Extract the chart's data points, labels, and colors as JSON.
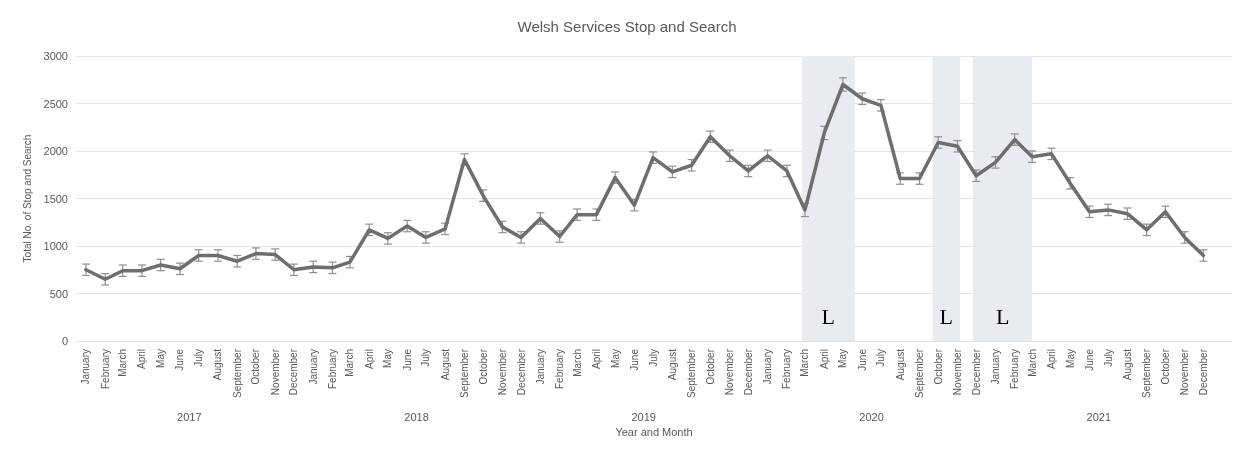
{
  "chart_data": {
    "type": "line",
    "title": "Welsh Services Stop and Search",
    "xlabel": "Year and Month",
    "ylabel": "Total No. of Stop and Search",
    "x": [
      "2017-01",
      "2017-02",
      "2017-03",
      "2017-04",
      "2017-05",
      "2017-06",
      "2017-07",
      "2017-08",
      "2017-09",
      "2017-10",
      "2017-11",
      "2017-12",
      "2018-01",
      "2018-02",
      "2018-03",
      "2018-04",
      "2018-05",
      "2018-06",
      "2018-07",
      "2018-08",
      "2018-09",
      "2018-10",
      "2018-11",
      "2018-12",
      "2019-01",
      "2019-02",
      "2019-03",
      "2019-04",
      "2019-05",
      "2019-06",
      "2019-07",
      "2019-08",
      "2019-09",
      "2019-10",
      "2019-11",
      "2019-12",
      "2020-01",
      "2020-02",
      "2020-03",
      "2020-04",
      "2020-05",
      "2020-06",
      "2020-07",
      "2020-08",
      "2020-09",
      "2020-10",
      "2020-11",
      "2020-12",
      "2021-01",
      "2021-02",
      "2021-03",
      "2021-04",
      "2021-05",
      "2021-06",
      "2021-07",
      "2021-08",
      "2021-09",
      "2021-10",
      "2021-11",
      "2021-12"
    ],
    "series": [
      {
        "color": "#6e6e6e",
        "values": [
          750,
          650,
          740,
          740,
          800,
          760,
          900,
          900,
          840,
          920,
          910,
          750,
          780,
          770,
          830,
          1170,
          1080,
          1210,
          1090,
          1180,
          1910,
          1530,
          1200,
          1090,
          1290,
          1100,
          1330,
          1330,
          1720,
          1430,
          1930,
          1780,
          1850,
          2150,
          1950,
          1790,
          1950,
          1790,
          1380,
          2190,
          2700,
          2550,
          2480,
          1710,
          1710,
          2090,
          2050,
          1740,
          1880,
          2120,
          1940,
          1970,
          1660,
          1360,
          1380,
          1340,
          1170,
          1360,
          1090,
          900
        ],
        "errors": [
          60,
          60,
          60,
          60,
          60,
          60,
          60,
          60,
          60,
          60,
          60,
          60,
          60,
          60,
          60,
          60,
          60,
          60,
          60,
          60,
          60,
          60,
          60,
          60,
          60,
          60,
          60,
          60,
          60,
          60,
          60,
          60,
          60,
          60,
          60,
          60,
          60,
          60,
          70,
          70,
          70,
          60,
          60,
          60,
          60,
          60,
          60,
          60,
          60,
          60,
          60,
          60,
          60,
          60,
          60,
          60,
          60,
          60,
          60,
          60
        ]
      }
    ],
    "xlim": [
      "2016-12-16",
      "2022-01-16"
    ],
    "xticks": [
      {
        "value": "2017-01",
        "label": "January"
      },
      {
        "value": "2017-02",
        "label": "February"
      },
      {
        "value": "2017-03",
        "label": "March"
      },
      {
        "value": "2017-04",
        "label": "April"
      },
      {
        "value": "2017-05",
        "label": "May"
      },
      {
        "value": "2017-06",
        "label": "June"
      },
      {
        "value": "2017-07",
        "label": "July"
      },
      {
        "value": "2017-08",
        "label": "August"
      },
      {
        "value": "2017-09",
        "label": "September"
      },
      {
        "value": "2017-10",
        "label": "October"
      },
      {
        "value": "2017-11",
        "label": "November"
      },
      {
        "value": "2017-12",
        "label": "December"
      },
      {
        "value": "2018-01",
        "label": "January"
      },
      {
        "value": "2018-02",
        "label": "February"
      },
      {
        "value": "2018-03",
        "label": "March"
      },
      {
        "value": "2018-04",
        "label": "April"
      },
      {
        "value": "2018-05",
        "label": "May"
      },
      {
        "value": "2018-06",
        "label": "June"
      },
      {
        "value": "2018-07",
        "label": "July"
      },
      {
        "value": "2018-08",
        "label": "August"
      },
      {
        "value": "2018-09",
        "label": "September"
      },
      {
        "value": "2018-10",
        "label": "October"
      },
      {
        "value": "2018-11",
        "label": "November"
      },
      {
        "value": "2018-12",
        "label": "December"
      },
      {
        "value": "2019-01",
        "label": "January"
      },
      {
        "value": "2019-02",
        "label": "February"
      },
      {
        "value": "2019-03",
        "label": "March"
      },
      {
        "value": "2019-04",
        "label": "April"
      },
      {
        "value": "2019-05",
        "label": "May"
      },
      {
        "value": "2019-06",
        "label": "June"
      },
      {
        "value": "2019-07",
        "label": "July"
      },
      {
        "value": "2019-08",
        "label": "August"
      },
      {
        "value": "2019-09",
        "label": "September"
      },
      {
        "value": "2019-10",
        "label": "October"
      },
      {
        "value": "2019-11",
        "label": "November"
      },
      {
        "value": "2019-12",
        "label": "December"
      },
      {
        "value": "2020-01",
        "label": "January"
      },
      {
        "value": "2020-02",
        "label": "February"
      },
      {
        "value": "2020-03",
        "label": "March"
      },
      {
        "value": "2020-04",
        "label": "April"
      },
      {
        "value": "2020-05",
        "label": "May"
      },
      {
        "value": "2020-06",
        "label": "June"
      },
      {
        "value": "2020-07",
        "label": "July"
      },
      {
        "value": "2020-08",
        "label": "August"
      },
      {
        "value": "2020-09",
        "label": "September"
      },
      {
        "value": "2020-10",
        "label": "October"
      },
      {
        "value": "2020-11",
        "label": "November"
      },
      {
        "value": "2020-12",
        "label": "December"
      },
      {
        "value": "2021-01",
        "label": "January"
      },
      {
        "value": "2021-02",
        "label": "February"
      },
      {
        "value": "2021-03",
        "label": "March"
      },
      {
        "value": "2021-04",
        "label": "April"
      },
      {
        "value": "2021-05",
        "label": "May"
      },
      {
        "value": "2021-06",
        "label": "June"
      },
      {
        "value": "2021-07",
        "label": "July"
      },
      {
        "value": "2021-08",
        "label": "August"
      },
      {
        "value": "2021-09",
        "label": "September"
      },
      {
        "value": "2021-10",
        "label": "October"
      },
      {
        "value": "2021-11",
        "label": "November"
      },
      {
        "value": "2021-12",
        "label": "December"
      }
    ],
    "x2lim": [
      "2016-12-16",
      "2022-01-16"
    ],
    "x2ticks": [
      {
        "value": "2017-06-16",
        "label": "2017"
      },
      {
        "value": "2018-06-16",
        "label": "2018"
      },
      {
        "value": "2019-06-16",
        "label": "2019"
      },
      {
        "value": "2020-06-16",
        "label": "2020"
      },
      {
        "value": "2021-06-16",
        "label": "2021"
      }
    ],
    "ylim": [
      0,
      3000
    ],
    "yticks": [
      0,
      500,
      1000,
      1500,
      2000,
      2500,
      3000
    ],
    "bands": [
      {
        "axis": "x",
        "from": "2020-02-25",
        "to": "2020-05-20",
        "label": "L",
        "color": "#e8ebf0"
      },
      {
        "axis": "x",
        "from": "2020-09-22",
        "to": "2020-11-05",
        "label": "L",
        "color": "#e8ebf0"
      },
      {
        "axis": "x",
        "from": "2020-11-26",
        "to": "2021-03-01",
        "label": "L",
        "color": "#e8ebf0"
      }
    ],
    "grid": "y",
    "marker": "none",
    "line_style": "solid"
  }
}
